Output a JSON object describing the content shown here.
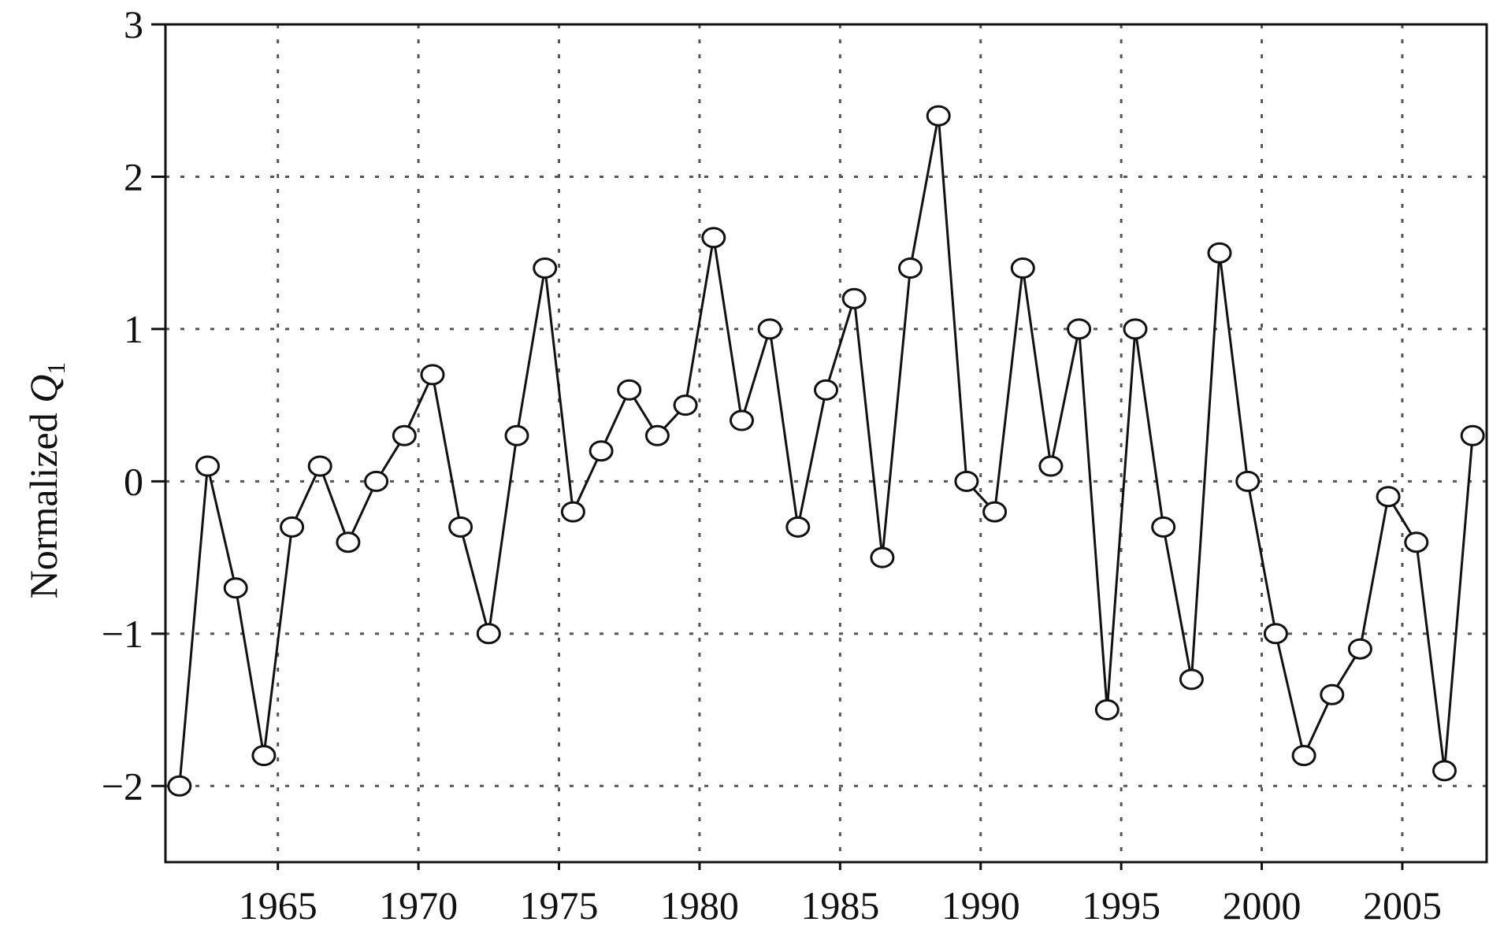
{
  "chart_data": {
    "type": "line",
    "title": "",
    "xlabel": "",
    "ylabel": {
      "prefix": "Normalized ",
      "symbol": "Q",
      "subscript": "1"
    },
    "xlim": [
      1961,
      2008
    ],
    "ylim": [
      -2.5,
      3
    ],
    "grid": true,
    "x_ticks": [
      1965,
      1970,
      1975,
      1980,
      1985,
      1990,
      1995,
      2000,
      2005
    ],
    "x_tick_labels": [
      "1965",
      "1970",
      "1975",
      "1980",
      "1985",
      "1990",
      "1995",
      "2000",
      "2005"
    ],
    "y_ticks": [
      3,
      2,
      1,
      0,
      -1,
      -2
    ],
    "y_tick_labels": [
      "3",
      "2",
      "1",
      "0",
      "−1",
      "−2"
    ],
    "series": [
      {
        "marker": "circle",
        "color": "#111111",
        "x": [
          1961.5,
          1962.5,
          1963.5,
          1964.5,
          1965.5,
          1966.5,
          1967.5,
          1968.5,
          1969.5,
          1970.5,
          1971.5,
          1972.5,
          1973.5,
          1974.5,
          1975.5,
          1976.5,
          1977.5,
          1978.5,
          1979.5,
          1980.5,
          1981.5,
          1982.5,
          1983.5,
          1984.5,
          1985.5,
          1986.5,
          1987.5,
          1988.5,
          1989.5,
          1990.5,
          1991.5,
          1992.5,
          1993.5,
          1994.5,
          1995.5,
          1996.5,
          1997.5,
          1998.5,
          1999.5,
          2000.5,
          2001.5,
          2002.5,
          2003.5,
          2004.5,
          2005.5,
          2006.5,
          2007.5
        ],
        "values": [
          -2.0,
          0.1,
          -0.7,
          -1.8,
          -0.3,
          0.1,
          -0.4,
          0.0,
          0.3,
          0.7,
          -0.3,
          -1.0,
          0.3,
          1.4,
          -0.2,
          0.2,
          0.6,
          0.3,
          0.5,
          1.6,
          0.4,
          1.0,
          -0.3,
          0.6,
          1.2,
          -0.5,
          1.4,
          2.4,
          0.0,
          -0.2,
          1.4,
          0.1,
          1.0,
          -1.5,
          1.0,
          -0.3,
          -1.3,
          1.5,
          0.0,
          -1.0,
          -1.8,
          -1.4,
          -1.1,
          -0.1,
          -0.4,
          -1.9,
          0.3
        ]
      }
    ]
  }
}
